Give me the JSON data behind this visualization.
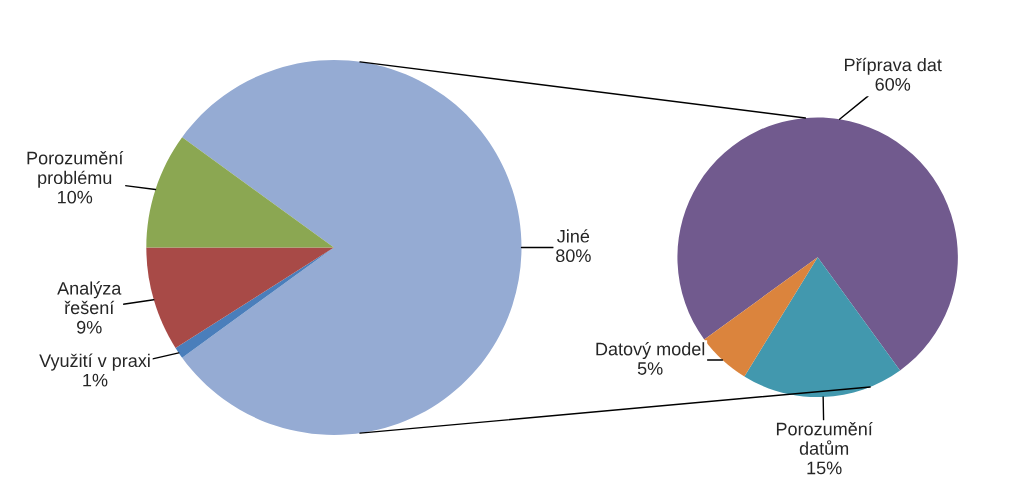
{
  "chart_data": [
    {
      "type": "pie",
      "categories": [
        "Jiné",
        "Využití v praxi",
        "Analýza řešení",
        "Porozumění problému"
      ],
      "values": [
        80,
        1,
        9,
        10
      ],
      "colors": [
        "#95abd3",
        "#4a7ebb",
        "#a84a47",
        "#8ba752"
      ],
      "value_labels": [
        "80%",
        "1%",
        "9%",
        "10%"
      ]
    },
    {
      "type": "pie",
      "categories": [
        "Příprava dat",
        "Porozumění datům",
        "Datový model"
      ],
      "values": [
        60,
        15,
        5
      ],
      "colors": [
        "#715a8e",
        "#4298ae",
        "#db843d"
      ],
      "value_labels": [
        "60%",
        "15%",
        "5%"
      ]
    }
  ]
}
